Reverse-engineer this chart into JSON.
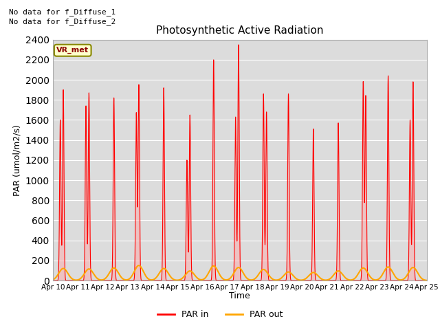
{
  "title": "Photosynthetic Active Radiation",
  "ylabel": "PAR (umol/m2/s)",
  "xlabel": "Time",
  "ylim": [
    0,
    2400
  ],
  "yticks": [
    0,
    200,
    400,
    600,
    800,
    1000,
    1200,
    1400,
    1600,
    1800,
    2000,
    2200,
    2400
  ],
  "xtick_labels": [
    "Apr 10",
    "Apr 11",
    "Apr 12",
    "Apr 13",
    "Apr 14",
    "Apr 15",
    "Apr 16",
    "Apr 17",
    "Apr 18",
    "Apr 19",
    "Apr 20",
    "Apr 21",
    "Apr 22",
    "Apr 23",
    "Apr 24",
    "Apr 25"
  ],
  "annotation1": "No data for f_Diffuse_1",
  "annotation2": "No data for f_Diffuse_2",
  "vr_label": "VR_met",
  "legend_labels": [
    "PAR in",
    "PAR out"
  ],
  "par_in_color": "#ff0000",
  "par_out_color": "#ffa500",
  "par_in_fill_color": "#ffaaaa",
  "background_color": "#dcdcdc",
  "figure_bg": "#ffffff",
  "grid_color": "#ffffff",
  "total_days": 15,
  "par_in_peaks": [
    1900,
    1870,
    1820,
    1950,
    1920,
    1650,
    2200,
    2350,
    1860,
    1860,
    1510,
    1570,
    1980,
    2040,
    1980
  ],
  "par_in_secondary_peaks": [
    1600,
    1740,
    0,
    1670,
    0,
    1200,
    0,
    1630,
    1680,
    0,
    0,
    0,
    1840,
    0,
    1600
  ],
  "par_in_secondary_offsets": [
    -0.12,
    -0.12,
    0,
    -0.1,
    0,
    -0.12,
    0,
    -0.12,
    0.12,
    0,
    0,
    0,
    0.1,
    0,
    -0.12
  ],
  "par_out_peaks": [
    120,
    115,
    125,
    150,
    120,
    95,
    145,
    130,
    110,
    85,
    80,
    95,
    125,
    135,
    130
  ],
  "par_in_sigma": 0.028,
  "par_out_sigma": 0.18,
  "par_in_day_centers": [
    0.42,
    1.45,
    2.45,
    3.45,
    4.45,
    5.5,
    6.45,
    7.45,
    8.45,
    9.45,
    10.45,
    11.45,
    12.45,
    13.45,
    14.45
  ]
}
